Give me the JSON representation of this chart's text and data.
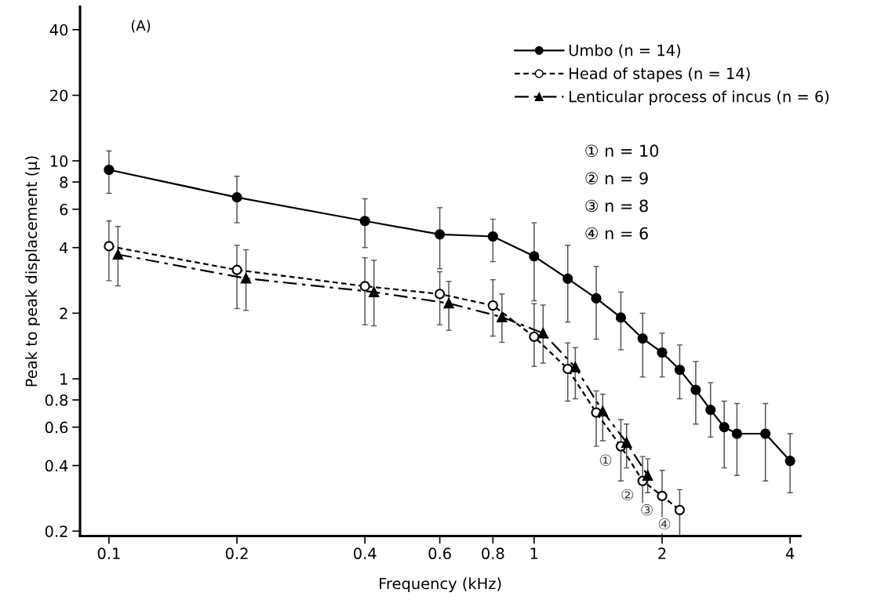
{
  "chart_data": {
    "type": "line",
    "xlabel": "Frequency (kHz)",
    "ylabel": "Peak to peak displacement (μ)",
    "log": "xy",
    "grid": false,
    "legend": "top right",
    "xlim": [
      0.0855,
      4.23
    ],
    "xticks": [
      0.1,
      0.2,
      0.4,
      0.6,
      0.8,
      1,
      2,
      4
    ],
    "ylim": [
      0.19,
      51
    ],
    "yticks": [
      0.2,
      0.4,
      0.6,
      0.8,
      1,
      2,
      4,
      6,
      8,
      10,
      20,
      40
    ],
    "series": [
      {
        "name": "Umbo (n = 14)",
        "color": "#000000",
        "marker": "circle",
        "line_style": "solid",
        "x": [
          0.1,
          0.2,
          0.4,
          0.6,
          0.8,
          1.0,
          1.2,
          1.4,
          1.6,
          1.8,
          2.0,
          2.2,
          2.4,
          2.6,
          2.8,
          3.0,
          3.5,
          4.0
        ],
        "values": [
          9.1,
          6.8,
          5.3,
          4.6,
          4.5,
          3.65,
          2.88,
          2.34,
          1.91,
          1.53,
          1.32,
          1.1,
          0.89,
          0.72,
          0.6,
          0.56,
          0.56,
          0.42
        ],
        "errors": [
          [
            7.1,
            11.1
          ],
          [
            5.2,
            8.5
          ],
          [
            4.0,
            6.7
          ],
          [
            3.2,
            6.1
          ],
          [
            3.45,
            5.4
          ],
          [
            2.28,
            5.2
          ],
          [
            1.82,
            4.1
          ],
          [
            1.52,
            3.28
          ],
          [
            1.36,
            2.5
          ],
          [
            1.02,
            2.0
          ],
          [
            1.02,
            1.62
          ],
          [
            0.81,
            1.43
          ],
          [
            0.62,
            1.2
          ],
          [
            0.54,
            0.96
          ],
          [
            0.39,
            0.79
          ],
          [
            0.36,
            0.77
          ],
          [
            0.34,
            0.77
          ],
          [
            0.3,
            0.56
          ]
        ]
      },
      {
        "name": "Head of stapes (n = 14)",
        "color": "#000000",
        "marker": "open circle",
        "line_style": "dashed",
        "x": [
          0.1,
          0.2,
          0.4,
          0.6,
          0.8,
          1.0,
          1.2,
          1.4,
          1.6,
          1.8,
          2.0,
          2.2
        ],
        "values": [
          4.06,
          3.16,
          2.66,
          2.45,
          2.17,
          1.56,
          1.11,
          0.7,
          0.49,
          0.34,
          0.29,
          0.25
        ],
        "errors": [
          [
            2.82,
            5.3
          ],
          [
            2.1,
            4.1
          ],
          [
            1.77,
            3.59
          ],
          [
            1.77,
            3.1
          ],
          [
            1.57,
            2.85
          ],
          [
            1.14,
            2.21
          ],
          [
            0.79,
            1.46
          ],
          [
            0.49,
            0.88
          ],
          [
            0.34,
            0.65
          ],
          [
            0.25,
            0.44
          ],
          [
            0.19,
            0.38
          ],
          [
            0.19,
            0.31
          ]
        ]
      },
      {
        "name": "Lenticular process of incus (n = 6)",
        "color": "#000000",
        "marker": "triangle",
        "line_style": "dashdot",
        "x": [
          0.105,
          0.21,
          0.42,
          0.63,
          0.84,
          1.05,
          1.25,
          1.45,
          1.65,
          1.85
        ],
        "values": [
          3.72,
          2.89,
          2.5,
          2.22,
          1.92,
          1.62,
          1.13,
          0.71,
          0.51,
          0.36
        ],
        "errors": [
          [
            2.67,
            5.0
          ],
          [
            2.06,
            3.91
          ],
          [
            1.75,
            3.5
          ],
          [
            1.67,
            2.8
          ],
          [
            1.47,
            2.45
          ],
          [
            1.18,
            2.18
          ],
          [
            0.81,
            1.39
          ],
          [
            0.52,
            0.85
          ],
          [
            0.39,
            0.62
          ],
          [
            0.3,
            0.43
          ]
        ]
      }
    ],
    "annotations": [
      "(A)",
      "① n = 10",
      "② n = 9",
      "③ n = 8",
      "④ n = 6",
      {
        "text": "①",
        "x": 1.6,
        "y": 0.49
      },
      {
        "text": "②",
        "x": 1.8,
        "y": 0.34
      },
      {
        "text": "③",
        "x": 2.0,
        "y": 0.29
      },
      {
        "text": "④",
        "x": 2.2,
        "y": 0.25
      }
    ]
  }
}
